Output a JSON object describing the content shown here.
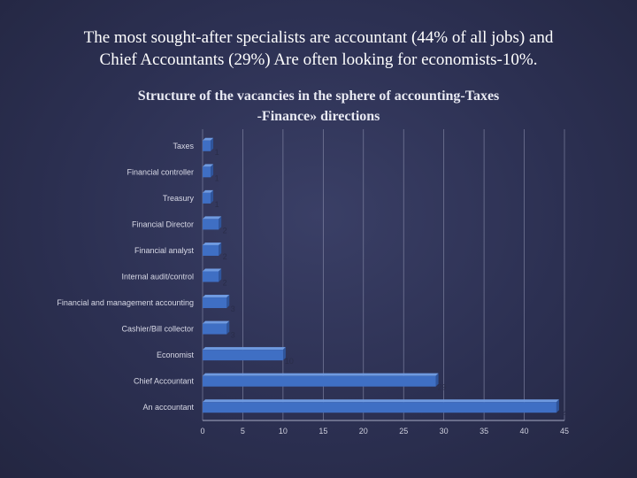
{
  "header": {
    "line1": "The most sought-after specialists are accountant (44% of all jobs) and",
    "line2": "Chief Accountants (29%) Are often looking for economists-10%."
  },
  "chart_data": {
    "type": "bar",
    "orientation": "horizontal",
    "title_line1": "Structure of the vacancies in the sphere of accounting-Taxes",
    "title_line2": "-Finance» directions",
    "categories": [
      "Taxes",
      "Financial controller",
      "Treasury",
      "Financial Director",
      "Financial analyst",
      "Internal audit/control",
      "Financial and management accounting",
      "Cashier/Bill collector",
      "Economist",
      "Chief Accountant",
      "An accountant"
    ],
    "values": [
      1,
      1,
      1,
      2,
      2,
      2,
      3,
      3,
      10,
      29,
      44
    ],
    "xlim": [
      0,
      45
    ],
    "xticks": [
      0,
      5,
      10,
      15,
      20,
      25,
      30,
      35,
      40,
      45
    ],
    "grid": true,
    "legend": "none",
    "colors": {
      "bar": "#3f6fc4",
      "bar_highlight": "#6f9ae0",
      "grid": "#8f93b0",
      "axis": "#a7abc4"
    }
  }
}
